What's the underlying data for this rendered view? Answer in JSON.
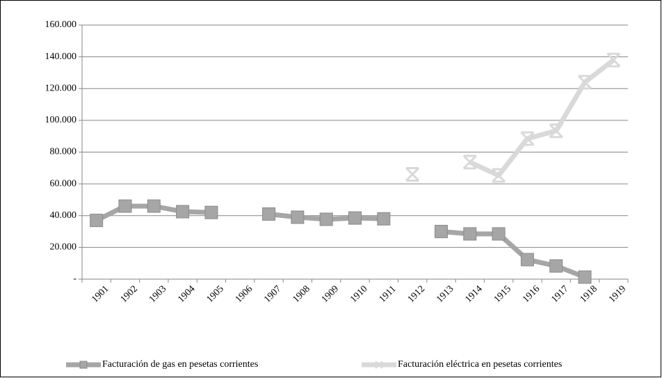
{
  "chart_data": {
    "type": "line",
    "categories": [
      "1901",
      "1902",
      "1903",
      "1904",
      "1905",
      "1906",
      "1907",
      "1908",
      "1909",
      "1910",
      "1911",
      "1912",
      "1913",
      "1914",
      "1915",
      "1916",
      "1917",
      "1918",
      "1919"
    ],
    "series": [
      {
        "name": "Facturación de gas en pesetas corrientes",
        "color": "#a6a6a6",
        "marker": "square",
        "values": [
          37000,
          46000,
          46000,
          42500,
          42000,
          null,
          41000,
          39000,
          37700,
          38500,
          38000,
          null,
          30000,
          28500,
          28500,
          12300,
          8300,
          1300,
          null
        ]
      },
      {
        "name": "Facturación eléctrica en pesetas corrientes",
        "color": "#d9d9d9",
        "marker": "x",
        "values": [
          null,
          null,
          null,
          null,
          null,
          null,
          null,
          null,
          null,
          null,
          null,
          66000,
          null,
          73700,
          65300,
          88500,
          93400,
          124000,
          138000
        ]
      }
    ],
    "ylim": [
      0,
      160000
    ],
    "yticks": [
      {
        "value": 0,
        "label": "-"
      },
      {
        "value": 20000,
        "label": "20.000"
      },
      {
        "value": 40000,
        "label": "40.000"
      },
      {
        "value": 60000,
        "label": "60.000"
      },
      {
        "value": 80000,
        "label": "80.000"
      },
      {
        "value": 100000,
        "label": "100.000"
      },
      {
        "value": 120000,
        "label": "120.000"
      },
      {
        "value": 140000,
        "label": "140.000"
      },
      {
        "value": 160000,
        "label": "160.000"
      }
    ],
    "grid": true,
    "legend": "bottom"
  }
}
